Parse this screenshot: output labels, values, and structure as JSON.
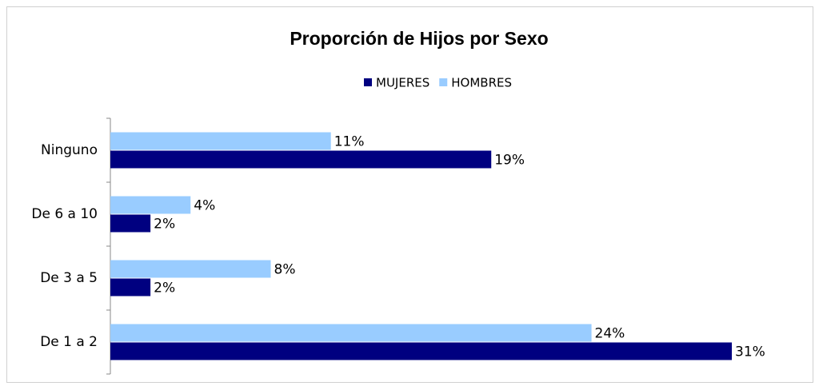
{
  "chart_data": {
    "type": "bar",
    "orientation": "horizontal",
    "title": "Proporción de Hijos por Sexo",
    "categories": [
      "Ninguno",
      "De 6 a 10",
      "De 3 a 5",
      "De 1 a 2"
    ],
    "series": [
      {
        "name": "MUJERES",
        "color": "#000080",
        "values": [
          19,
          2,
          2,
          31
        ],
        "value_labels": [
          "19%",
          "2%",
          "2%",
          "31%"
        ]
      },
      {
        "name": "HOMBRES",
        "color": "#99ccff",
        "values": [
          11,
          4,
          8,
          24
        ],
        "value_labels": [
          "11%",
          "4%",
          "8%",
          "24%"
        ]
      }
    ],
    "legend": "top"
  }
}
